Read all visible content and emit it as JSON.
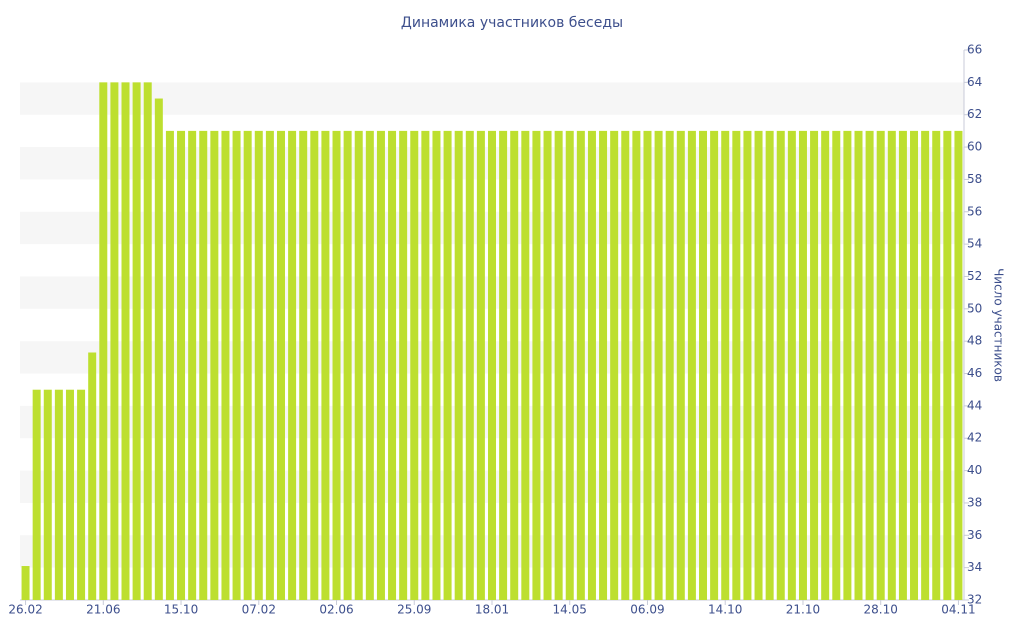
{
  "chart_data": {
    "type": "bar",
    "title": "Динамика участников беседы",
    "y_label": "Число участников",
    "color": "#bddf2f",
    "grid": true,
    "categories": [
      "26.02",
      null,
      null,
      null,
      null,
      null,
      null,
      "21.06",
      null,
      null,
      null,
      null,
      null,
      null,
      "15.10",
      null,
      null,
      null,
      null,
      null,
      null,
      "07.02",
      null,
      null,
      null,
      null,
      null,
      null,
      "02.06",
      null,
      null,
      null,
      null,
      null,
      null,
      "25.09",
      null,
      null,
      null,
      null,
      null,
      null,
      "18.01",
      null,
      null,
      null,
      null,
      null,
      null,
      "14.05",
      null,
      null,
      null,
      null,
      null,
      null,
      "06.09",
      null,
      null,
      null,
      null,
      null,
      null,
      "14.10",
      null,
      null,
      null,
      null,
      null,
      null,
      "21.10",
      null,
      null,
      null,
      null,
      null,
      null,
      "28.10",
      null,
      null,
      null,
      null,
      null,
      null,
      "04.11"
    ],
    "values": [
      34.1,
      45,
      45,
      45,
      45,
      45,
      47.3,
      64,
      64,
      64,
      64,
      64,
      63,
      61,
      61,
      61,
      61,
      61,
      61,
      61,
      61,
      61,
      61,
      61,
      61,
      61,
      61,
      61,
      61,
      61,
      61,
      61,
      61,
      61,
      61,
      61,
      61,
      61,
      61,
      61,
      61,
      61,
      61,
      61,
      61,
      61,
      61,
      61,
      61,
      61,
      61,
      61,
      61,
      61,
      61,
      61,
      61,
      61,
      61,
      61,
      61,
      61,
      61,
      61,
      61,
      61,
      61,
      61,
      61,
      61,
      61,
      61,
      61,
      61,
      61,
      61,
      61,
      61,
      61,
      61,
      61,
      61,
      61,
      61,
      61
    ],
    "ylim": [
      32,
      66
    ],
    "yticks": [
      32,
      34,
      36,
      38,
      40,
      42,
      44,
      46,
      48,
      50,
      52,
      54,
      56,
      58,
      60,
      62,
      64,
      66
    ]
  }
}
